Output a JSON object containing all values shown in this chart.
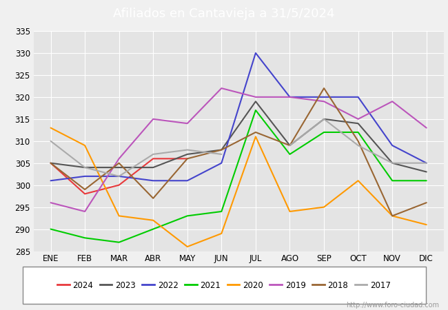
{
  "title": "Afiliados en Cantavieja a 31/5/2024",
  "title_color": "#ffffff",
  "title_bg_color": "#4d79a8",
  "xlabel": "",
  "ylabel": "",
  "ylim": [
    285,
    335
  ],
  "yticks": [
    285,
    290,
    295,
    300,
    305,
    310,
    315,
    320,
    325,
    330,
    335
  ],
  "months": [
    "ENE",
    "FEB",
    "MAR",
    "ABR",
    "MAY",
    "JUN",
    "JUL",
    "AGO",
    "SEP",
    "OCT",
    "NOV",
    "DIC"
  ],
  "series": {
    "2024": {
      "color": "#e8393c",
      "data": [
        305,
        298,
        300,
        306,
        306,
        null,
        null,
        null,
        null,
        null,
        null,
        null
      ]
    },
    "2023": {
      "color": "#555555",
      "data": [
        305,
        304,
        304,
        304,
        307,
        308,
        319,
        309,
        315,
        314,
        305,
        303
      ]
    },
    "2022": {
      "color": "#4444cc",
      "data": [
        301,
        302,
        302,
        301,
        301,
        305,
        330,
        320,
        320,
        320,
        309,
        305
      ]
    },
    "2021": {
      "color": "#00cc00",
      "data": [
        290,
        288,
        287,
        290,
        293,
        294,
        317,
        307,
        312,
        312,
        301,
        301
      ]
    },
    "2020": {
      "color": "#ff9900",
      "data": [
        313,
        309,
        293,
        292,
        286,
        289,
        311,
        294,
        295,
        301,
        293,
        291
      ]
    },
    "2019": {
      "color": "#bb55bb",
      "data": [
        296,
        294,
        306,
        315,
        314,
        322,
        320,
        320,
        319,
        315,
        319,
        313
      ]
    },
    "2018": {
      "color": "#996633",
      "data": [
        305,
        299,
        305,
        297,
        306,
        308,
        312,
        309,
        322,
        310,
        293,
        296
      ]
    },
    "2017": {
      "color": "#aaaaaa",
      "data": [
        310,
        304,
        302,
        307,
        308,
        307,
        null,
        309,
        315,
        309,
        305,
        305
      ]
    }
  },
  "legend_order": [
    "2024",
    "2023",
    "2022",
    "2021",
    "2020",
    "2019",
    "2018",
    "2017"
  ],
  "bg_color": "#f0f0f0",
  "plot_bg_color": "#e4e4e4",
  "grid_color": "#ffffff",
  "watermark": "http://www.foro-ciudad.com"
}
